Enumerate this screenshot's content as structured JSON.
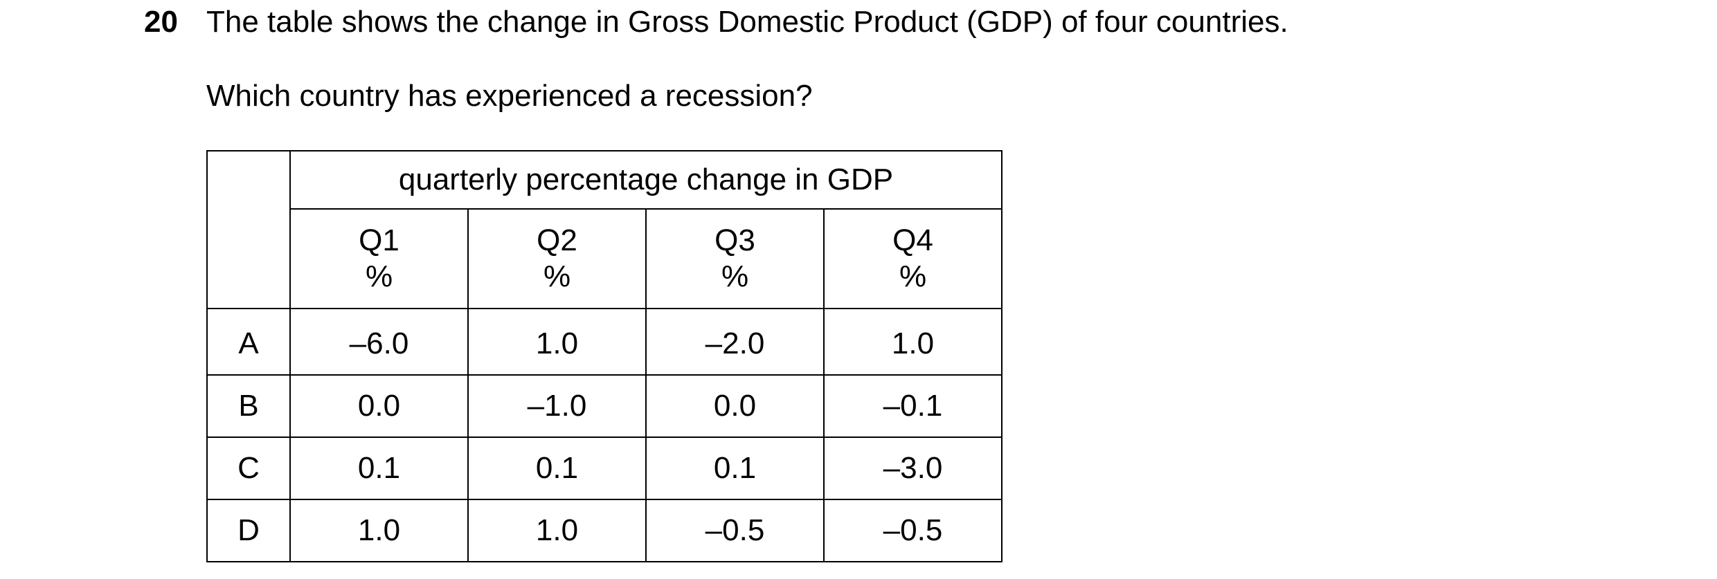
{
  "question": {
    "number": "20",
    "text": "The table shows the change in Gross Domestic Product (GDP) of four countries.",
    "prompt": "Which country has experienced a recession?"
  },
  "table": {
    "group_header": "quarterly percentage change in GDP",
    "columns": [
      {
        "label": "Q1",
        "unit": "%"
      },
      {
        "label": "Q2",
        "unit": "%"
      },
      {
        "label": "Q3",
        "unit": "%"
      },
      {
        "label": "Q4",
        "unit": "%"
      }
    ],
    "rows": [
      {
        "label": "A",
        "values": [
          "–6.0",
          "1.0",
          "–2.0",
          "1.0"
        ]
      },
      {
        "label": "B",
        "values": [
          "0.0",
          "–1.0",
          "0.0",
          "–0.1"
        ]
      },
      {
        "label": "C",
        "values": [
          "0.1",
          "0.1",
          "0.1",
          "–3.0"
        ]
      },
      {
        "label": "D",
        "values": [
          "1.0",
          "1.0",
          "–0.5",
          "–0.5"
        ]
      }
    ]
  }
}
